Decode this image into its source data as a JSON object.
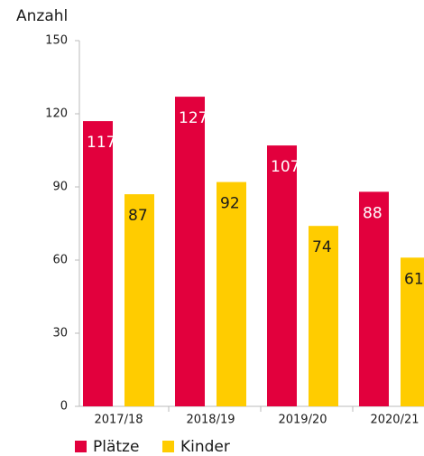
{
  "chart_data": {
    "type": "bar",
    "y_label": "Anzahl",
    "categories": [
      "2017/18",
      "2018/19",
      "2019/20",
      "2020/21"
    ],
    "series": [
      {
        "name": "Plätze",
        "color": "#e2003d",
        "values": [
          117,
          127,
          107,
          88
        ]
      },
      {
        "name": "Kinder",
        "color": "#ffcc00",
        "values": [
          87,
          92,
          74,
          61
        ]
      }
    ],
    "ylim": [
      0,
      150
    ],
    "yticks": [
      0,
      30,
      60,
      90,
      120,
      150
    ],
    "grid": false,
    "legend": "bottom"
  }
}
